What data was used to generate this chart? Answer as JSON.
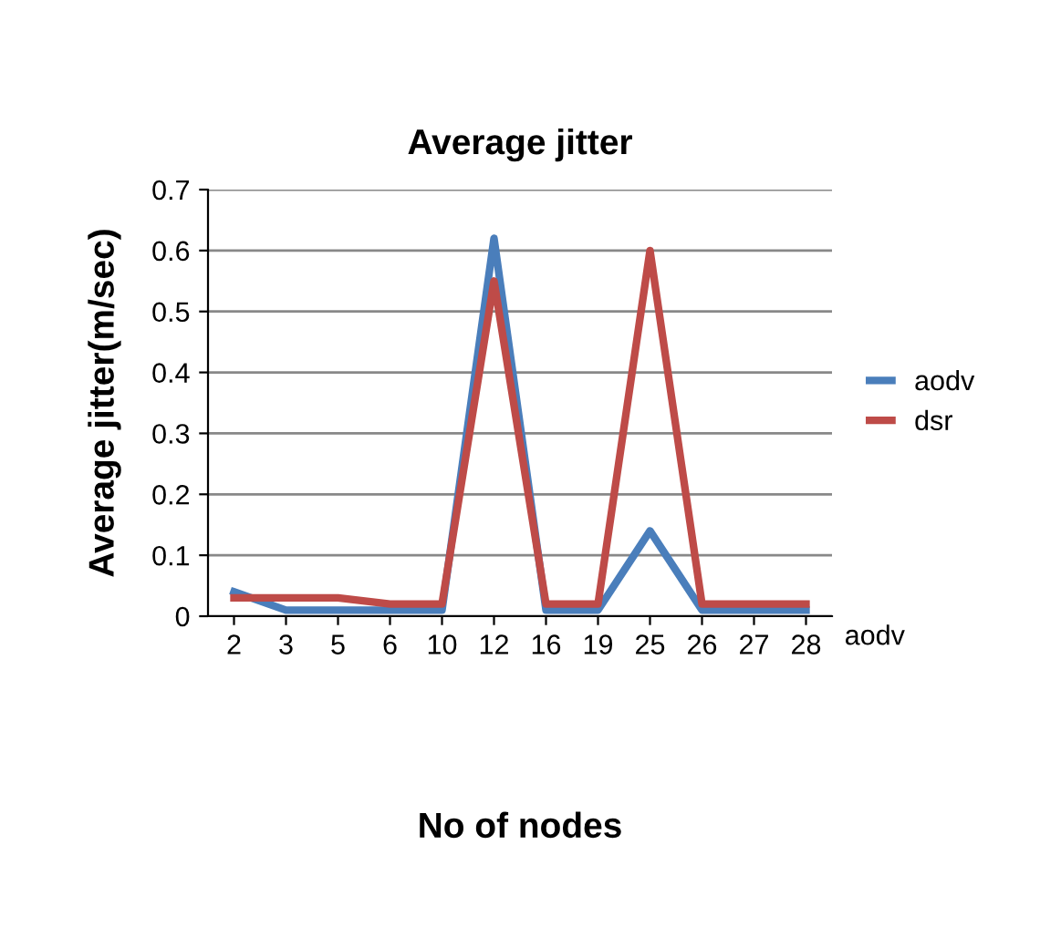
{
  "chart_data": {
    "type": "line",
    "title": "Average jitter",
    "xlabel": "No of nodes",
    "ylabel": "Average jitter(m/sec)",
    "categories": [
      "2",
      "3",
      "5",
      "6",
      "10",
      "12",
      "16",
      "19",
      "25",
      "26",
      "27",
      "28"
    ],
    "series": [
      {
        "name": "aodv",
        "color": "#4a7ebb",
        "values": [
          0.04,
          0.01,
          0.01,
          0.01,
          0.01,
          0.62,
          0.01,
          0.01,
          0.14,
          0.01,
          0.01,
          0.01
        ]
      },
      {
        "name": "dsr",
        "color": "#be4b48",
        "values": [
          0.03,
          0.03,
          0.03,
          0.02,
          0.02,
          0.55,
          0.02,
          0.02,
          0.6,
          0.02,
          0.02,
          0.02
        ]
      }
    ],
    "ylim": [
      0,
      0.7
    ],
    "yticks": [
      {
        "value": 0,
        "label": "0"
      },
      0.1,
      0.2,
      0.3,
      0.4,
      0.5,
      0.6,
      0.7
    ],
    "grid": "y",
    "legend": "right",
    "annotations": [
      "aodv"
    ]
  }
}
